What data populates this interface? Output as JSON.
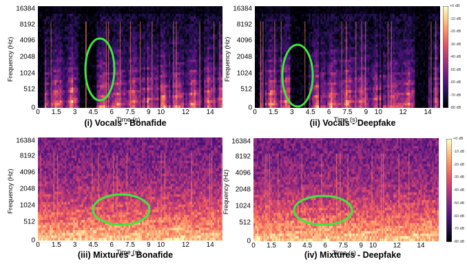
{
  "chart_data": [
    {
      "type": "heatmap",
      "caption": "(i) Vocals - Bonafide",
      "ylabel": "Frequency (Hz)",
      "xlabel": "Time (s)",
      "y_ticks": [
        "16384",
        "8192",
        "4096",
        "2048",
        "1024",
        "512",
        "0"
      ],
      "x_ticks": [
        "0",
        "1.5",
        "3",
        "4.5",
        "6",
        "7.5",
        "9",
        "10",
        "12",
        "14"
      ],
      "highlight": {
        "shape": "ellipse",
        "color": "#3ee83e"
      }
    },
    {
      "type": "heatmap",
      "caption": "(ii) Vocals - Deepfake",
      "ylabel": "Frequency (Hz)",
      "xlabel": "Time (s)",
      "y_ticks": [
        "16384",
        "8192",
        "4096",
        "2048",
        "1024",
        "512",
        "0"
      ],
      "x_ticks": [
        "0",
        "1.5",
        "3",
        "4.5",
        "6",
        "7.5",
        "9",
        "10",
        "12",
        "14"
      ],
      "colorbar_ticks": [
        "+0 dB",
        "-10 dB",
        "-20 dB",
        "-30 dB",
        "-40 dB",
        "-50 dB",
        "-60 dB",
        "-70 dB",
        "-80 dB"
      ],
      "highlight": {
        "shape": "ellipse",
        "color": "#3ee83e"
      }
    },
    {
      "type": "heatmap",
      "caption": "(iii) Mixtures - Bonafide",
      "ylabel": "Frequency (Hz)",
      "xlabel": "Time (s)",
      "y_ticks": [
        "16384",
        "8192",
        "4096",
        "2048",
        "1024",
        "512",
        "0"
      ],
      "x_ticks": [
        "0",
        "1.5",
        "3",
        "4.5",
        "6",
        "7.5",
        "9",
        "10",
        "12",
        "14"
      ],
      "highlight": {
        "shape": "ellipse",
        "color": "#3ee83e"
      }
    },
    {
      "type": "heatmap",
      "caption": "(iv) Mixtures - Deepfake",
      "ylabel": "Frequency (Hz)",
      "xlabel": "Time (s)",
      "y_ticks": [
        "16384",
        "8192",
        "4096",
        "2048",
        "1024",
        "512",
        "0"
      ],
      "x_ticks": [
        "0",
        "1.5",
        "3",
        "4.5",
        "6",
        "7.5",
        "9",
        "10",
        "12",
        "14"
      ],
      "colorbar_ticks": [
        "+0 dB",
        "-10 dB",
        "-20 dB",
        "-30 dB",
        "-40 dB",
        "-50 dB",
        "-60 dB",
        "-70 dB",
        "-80 dB"
      ],
      "highlight": {
        "shape": "ellipse",
        "color": "#3ee83e"
      }
    }
  ],
  "colormap": [
    "#000004",
    "#1d1147",
    "#51127c",
    "#822681",
    "#b73779",
    "#e75263",
    "#fc8961",
    "#fec287",
    "#fcfdbf"
  ]
}
